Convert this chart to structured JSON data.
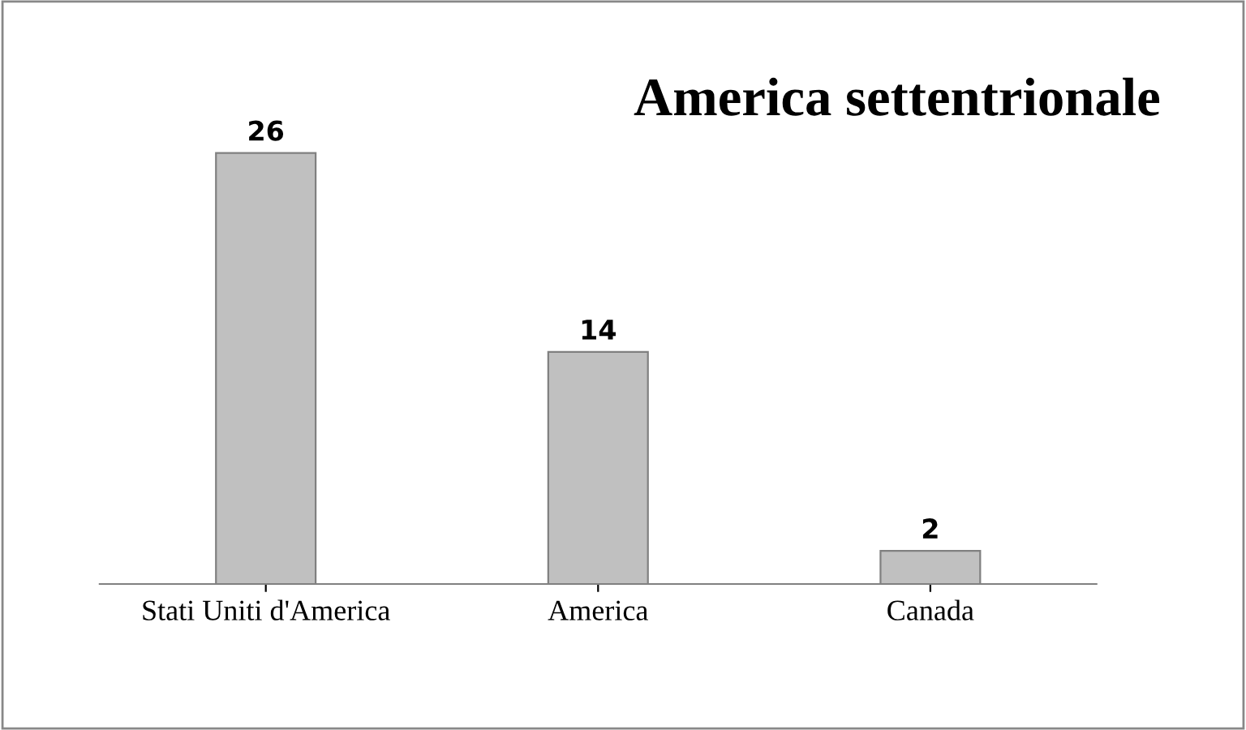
{
  "chart_data": {
    "type": "bar",
    "title": "America settentrionale",
    "categories": [
      "Stati Uniti d'America",
      "America",
      "Canada"
    ],
    "values": [
      26,
      14,
      2
    ],
    "color": "#c0c0c0",
    "data_labels": true,
    "grid": false,
    "legend": false
  }
}
